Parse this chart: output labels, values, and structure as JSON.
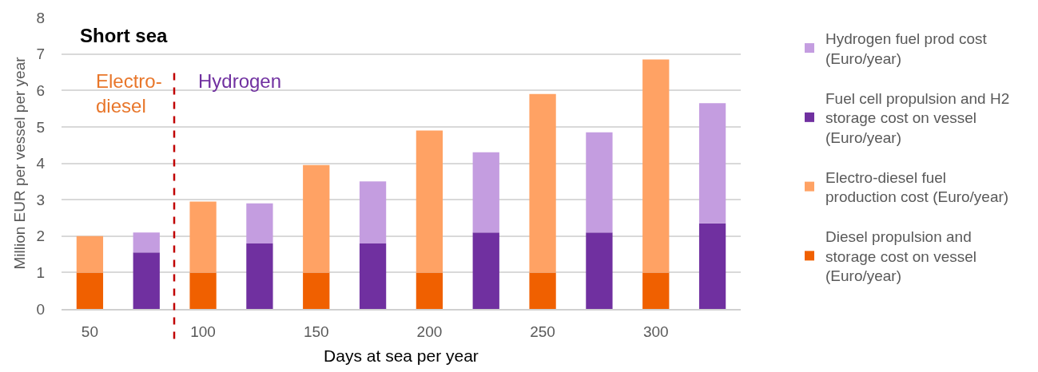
{
  "chart_data": {
    "type": "bar",
    "title": "Short sea",
    "xlabel": "Days at sea per year",
    "ylabel": "Million EUR per vessel per year",
    "categories": [
      "50",
      null,
      "100",
      null,
      "150",
      null,
      "200",
      null,
      "250",
      null,
      "300",
      null
    ],
    "series": [
      {
        "name": "Diesel propulsion and storage cost on vessel (Euro/year)",
        "color": "#f06000",
        "values": [
          1,
          null,
          1,
          null,
          1,
          null,
          1,
          null,
          1,
          null,
          1,
          null
        ]
      },
      {
        "name": "Electro-diesel fuel production cost (Euro/year)",
        "color": "#ffa264",
        "values": [
          1.0,
          null,
          1.95,
          null,
          2.95,
          null,
          3.9,
          null,
          4.9,
          null,
          5.85,
          null
        ]
      },
      {
        "name": "Fuel cell propulsion and H2 storage cost on vessel (Euro/year)",
        "color": "#7030a0",
        "values": [
          null,
          1.55,
          null,
          1.8,
          null,
          1.8,
          null,
          2.1,
          null,
          2.1,
          null,
          2.35
        ]
      },
      {
        "name": "Hydrogen fuel prod cost (Euro/year)",
        "color": "#c49de0",
        "values": [
          null,
          0.55,
          null,
          1.1,
          null,
          1.7,
          null,
          2.2,
          null,
          2.75,
          null,
          3.3
        ]
      }
    ],
    "stacked": true,
    "ylim": [
      0,
      8
    ],
    "yticks": [
      0,
      1,
      2,
      3,
      4,
      5,
      6,
      7,
      8
    ],
    "grid": "y",
    "legend": "right",
    "annotations": [
      "Electro-diesel",
      "Hydrogen"
    ]
  }
}
